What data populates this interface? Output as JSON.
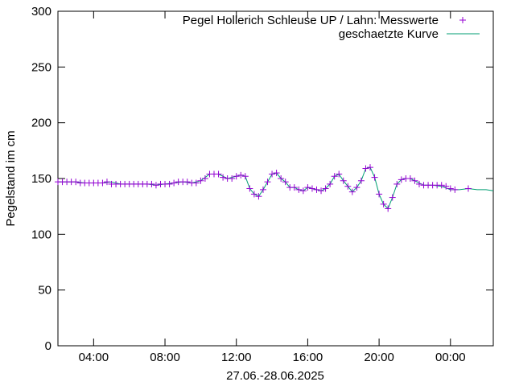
{
  "chart_data": {
    "type": "line",
    "xlabel": "27.06.-28.06.2025",
    "ylabel": "Pegelstand im cm",
    "ylim": [
      0,
      300
    ],
    "xlim": [
      2.0,
      26.4
    ],
    "yticks": [
      0,
      50,
      100,
      150,
      200,
      250,
      300
    ],
    "xticks": [
      {
        "label": "04:00",
        "x": 4
      },
      {
        "label": "08:00",
        "x": 8
      },
      {
        "label": "12:00",
        "x": 12
      },
      {
        "label": "16:00",
        "x": 16
      },
      {
        "label": "20:00",
        "x": 20
      },
      {
        "label": "00:00",
        "x": 24
      }
    ],
    "grid": false,
    "legend_position": "top-right",
    "colors": {
      "measured": "#9400d3",
      "estimated": "#009e73"
    },
    "series": [
      {
        "name": "Pegel Hollerich Schleuse UP / Lahn: Messwerte",
        "style": "points",
        "x": [
          2.0,
          2.25,
          2.5,
          2.75,
          3.0,
          3.25,
          3.5,
          3.75,
          4.0,
          4.25,
          4.5,
          4.75,
          5.0,
          5.25,
          5.5,
          5.75,
          6.0,
          6.25,
          6.5,
          6.75,
          7.0,
          7.25,
          7.5,
          7.75,
          8.0,
          8.25,
          8.5,
          8.75,
          9.0,
          9.25,
          9.5,
          9.75,
          10.0,
          10.25,
          10.5,
          10.75,
          11.0,
          11.25,
          11.5,
          11.75,
          12.0,
          12.25,
          12.5,
          12.75,
          13.0,
          13.25,
          13.5,
          13.75,
          14.0,
          14.25,
          14.5,
          14.75,
          15.0,
          15.25,
          15.5,
          15.75,
          16.0,
          16.25,
          16.5,
          16.75,
          17.0,
          17.25,
          17.5,
          17.75,
          18.0,
          18.25,
          18.5,
          18.75,
          19.0,
          19.25,
          19.5,
          19.75,
          20.0,
          20.25,
          20.5,
          20.75,
          21.0,
          21.25,
          21.5,
          21.75,
          22.0,
          22.25,
          22.5,
          22.75,
          23.0,
          23.25,
          23.5,
          23.75,
          24.0,
          24.25,
          25.0
        ],
        "y": [
          147,
          147,
          147,
          147,
          147,
          146,
          146,
          146,
          146,
          146,
          146,
          147,
          145,
          145,
          145,
          145,
          145,
          145,
          145,
          145,
          145,
          145,
          144,
          145,
          145,
          145,
          146,
          147,
          147,
          147,
          146,
          146,
          148,
          150,
          154,
          154,
          154,
          151,
          150,
          150,
          152,
          153,
          152,
          141,
          136,
          134,
          140,
          147,
          154,
          155,
          150,
          147,
          142,
          142,
          140,
          139,
          142,
          141,
          140,
          139,
          141,
          145,
          152,
          154,
          148,
          143,
          138,
          142,
          148,
          159,
          160,
          151,
          136,
          127,
          123,
          133,
          145,
          149,
          150,
          150,
          148,
          145,
          144,
          144,
          144,
          144,
          144,
          143,
          141,
          140,
          141
        ]
      },
      {
        "name": "geschaetzte Kurve",
        "style": "line",
        "x": [
          2.0,
          2.5,
          3.0,
          3.5,
          4.0,
          4.5,
          5.0,
          5.5,
          6.0,
          6.5,
          7.0,
          7.5,
          8.0,
          8.5,
          9.0,
          9.5,
          10.0,
          10.5,
          11.0,
          11.5,
          12.0,
          12.25,
          12.5,
          12.75,
          13.0,
          13.25,
          13.5,
          13.75,
          14.0,
          14.25,
          14.5,
          14.75,
          15.0,
          15.25,
          15.5,
          15.75,
          16.0,
          16.25,
          16.5,
          16.75,
          17.0,
          17.25,
          17.5,
          17.75,
          18.0,
          18.25,
          18.5,
          18.75,
          19.0,
          19.25,
          19.5,
          19.75,
          20.0,
          20.25,
          20.5,
          20.75,
          21.0,
          21.25,
          21.5,
          21.75,
          22.0,
          22.5,
          23.0,
          23.5,
          24.0,
          24.5,
          25.0,
          25.5,
          26.0,
          26.4
        ],
        "y": [
          147,
          147,
          147,
          146,
          146,
          146,
          147,
          145,
          145,
          145,
          145,
          144,
          145,
          146,
          147,
          146,
          148,
          154,
          154,
          150,
          152,
          153,
          152,
          141,
          136,
          134,
          140,
          147,
          154,
          155,
          150,
          147,
          142,
          142,
          140,
          139,
          142,
          141,
          140,
          139,
          141,
          145,
          152,
          154,
          148,
          143,
          138,
          142,
          148,
          159,
          160,
          151,
          136,
          127,
          123,
          133,
          145,
          149,
          150,
          150,
          148,
          144,
          144,
          143,
          140,
          140,
          141,
          140,
          140,
          139
        ]
      }
    ]
  }
}
